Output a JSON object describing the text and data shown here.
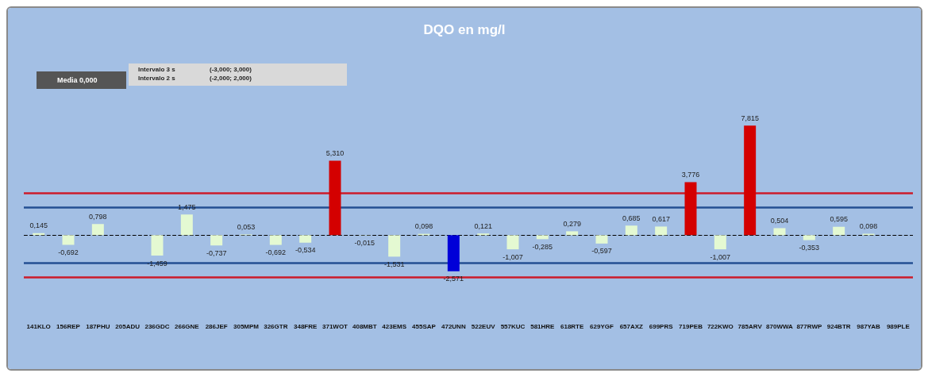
{
  "chart_data": {
    "type": "bar",
    "title": "DQO en mg/l",
    "categories": [
      "141KLO",
      "156REP",
      "187PHU",
      "205ADU",
      "236GDC",
      "266GNE",
      "286JEF",
      "305MPM",
      "326GTR",
      "348FRE",
      "371WOT",
      "408MBT",
      "423EMS",
      "455SAP",
      "472UNN",
      "522EUV",
      "557KUC",
      "581HRE",
      "618RTE",
      "629YGF",
      "657AXZ",
      "699PRS",
      "719PEB",
      "722KWO",
      "785ARV",
      "870WWA",
      "877RWP",
      "924BTR",
      "987YAB",
      "989PLE"
    ],
    "values": [
      0.145,
      -0.692,
      0.798,
      null,
      -1.459,
      1.475,
      -0.737,
      0.053,
      -0.692,
      -0.534,
      5.31,
      -0.015,
      -1.531,
      0.098,
      -2.571,
      0.121,
      -1.007,
      -0.285,
      0.279,
      -0.597,
      0.685,
      0.617,
      3.776,
      -1.007,
      7.815,
      0.504,
      -0.353,
      0.595,
      0.098,
      null
    ],
    "value_labels": [
      "0,145",
      "-0,692",
      "0,798",
      null,
      "-1,459",
      "1,475",
      "-0,737",
      "0,053",
      "-0,692",
      "-0,534",
      "5,310",
      "-0,015",
      "-1,531",
      "0,098",
      "-2,571",
      "0,121",
      "-1,007",
      "-0,285",
      "0,279",
      "-0,597",
      "0,685",
      "0,617",
      "3,776",
      "-1,007",
      "7,815",
      "0,504",
      "-0,353",
      "0,595",
      "0,098",
      null
    ],
    "colors": [
      "#e4f9d2",
      "#e4f9d2",
      "#e4f9d2",
      "#e4f9d2",
      "#e4f9d2",
      "#e4f9d2",
      "#e4f9d2",
      "#e4f9d2",
      "#e4f9d2",
      "#e4f9d2",
      "#d40000",
      "#e4f9d2",
      "#e4f9d2",
      "#e4f9d2",
      "#0000d8",
      "#e4f9d2",
      "#e4f9d2",
      "#e4f9d2",
      "#e4f9d2",
      "#e4f9d2",
      "#e4f9d2",
      "#e4f9d2",
      "#d40000",
      "#e4f9d2",
      "#d40000",
      "#e4f9d2",
      "#e4f9d2",
      "#e4f9d2",
      "#e4f9d2",
      "#e4f9d2"
    ],
    "ref_lines": [
      {
        "axis": "y",
        "value": 0,
        "color": "#000000",
        "line_style": "dashed"
      },
      {
        "axis": "y",
        "value": 3,
        "color": "#cc1b2b",
        "line_style": "solid"
      },
      {
        "axis": "y",
        "value": -3,
        "color": "#cc1b2b",
        "line_style": "solid"
      },
      {
        "axis": "y",
        "value": 2,
        "color": "#234f93",
        "line_style": "solid"
      },
      {
        "axis": "y",
        "value": -2,
        "color": "#234f93",
        "line_style": "solid"
      }
    ],
    "annotations": [
      "Media 0,000",
      "Intervalo 3 s",
      "(-3,000; 3,000)",
      "Intervalo 2 s",
      "(-2,000; 2,000)"
    ],
    "grid": false
  }
}
